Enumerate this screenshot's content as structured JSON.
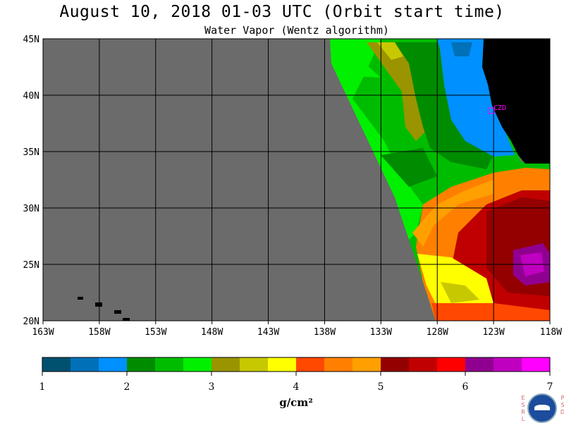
{
  "header": {
    "title": "August 10, 2018  01-03 UTC  (Orbit start time)",
    "subtitle": "Water Vapor (Wentz algorithm)"
  },
  "map": {
    "lat_labels": [
      "45N",
      "40N",
      "35N",
      "30N",
      "25N",
      "20N"
    ],
    "lon_labels": [
      "163W",
      "158W",
      "153W",
      "148W",
      "143W",
      "138W",
      "133W",
      "128W",
      "123W",
      "118W"
    ],
    "station_label": "CZD",
    "colors": {
      "missing": "#6b6b6b",
      "land": "#000000",
      "station": "#ff00ff"
    }
  },
  "colorbar": {
    "labels": [
      "1",
      "2",
      "3",
      "4",
      "5",
      "6",
      "7"
    ],
    "unit": "g/cm²",
    "colors": [
      "#005070",
      "#0070b8",
      "#0090ff",
      "#008c00",
      "#00bc00",
      "#00f000",
      "#9a9400",
      "#c8c800",
      "#ffff00",
      "#ff4800",
      "#ff8000",
      "#ffa000",
      "#940000",
      "#c00000",
      "#ff0000",
      "#900090",
      "#c000c0",
      "#ff00ff"
    ]
  },
  "logo": {
    "left_letters": [
      "E",
      "S",
      "R",
      "L"
    ],
    "right_letters": [
      "P",
      "S",
      "D"
    ],
    "name": "NOAA",
    "icon": "noaa-logo-icon"
  }
}
